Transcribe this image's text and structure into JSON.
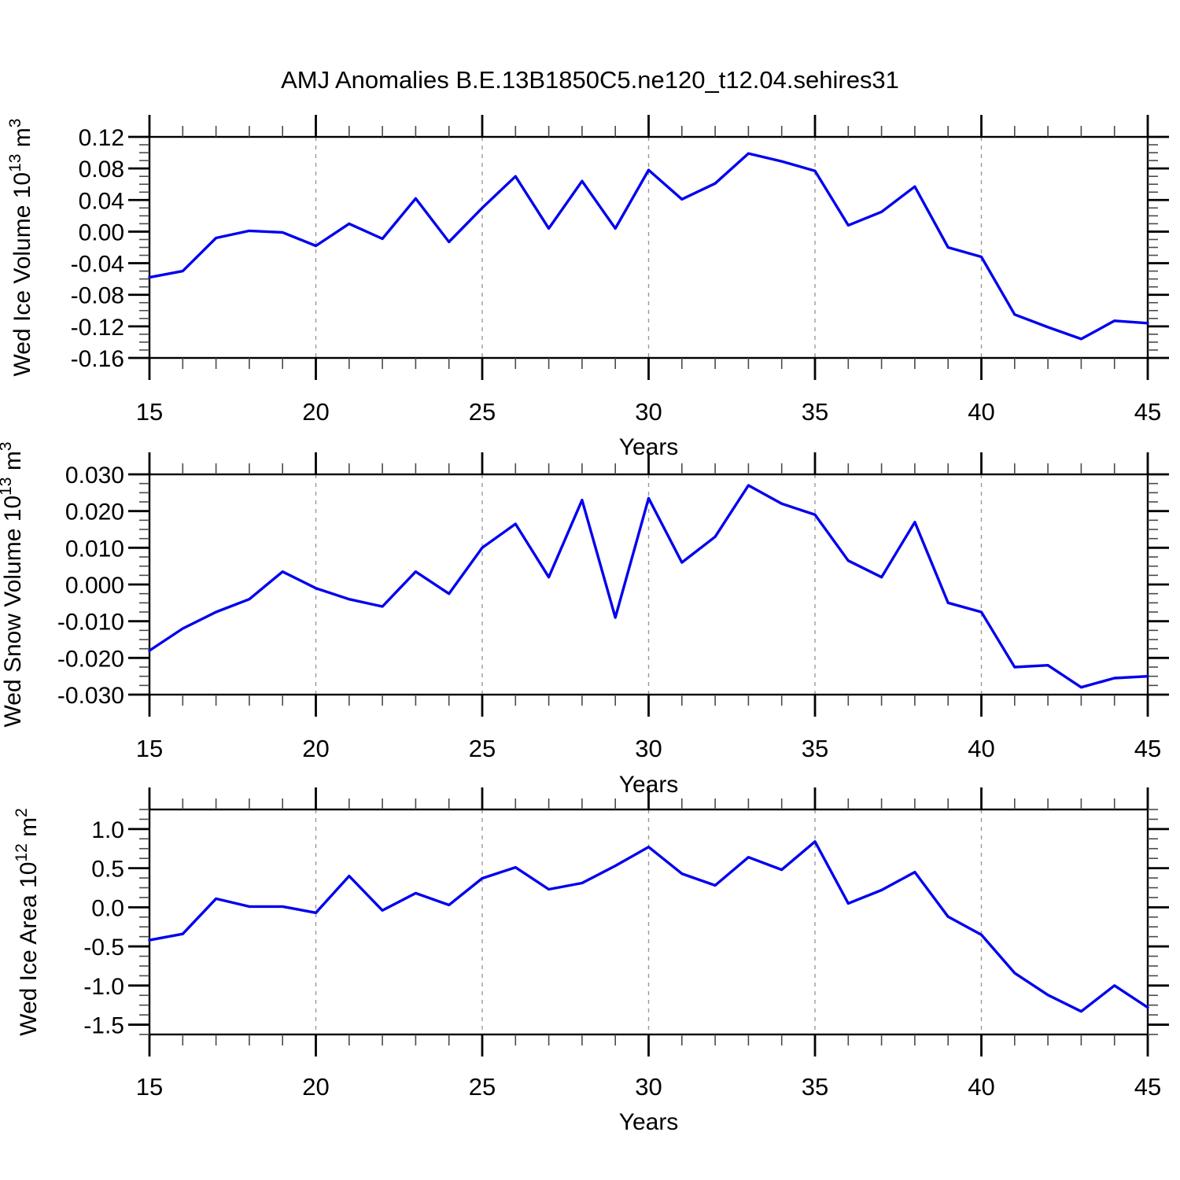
{
  "title": "AMJ Anomalies B.E.13B1850C5.ne120_t12.04.sehires31",
  "colors": {
    "line": "#0000EE",
    "frame": "#000000",
    "major_tick": "#000000",
    "minor_tick": "#4a4a4a",
    "gridline": "#999999",
    "text": "#000000",
    "background": "#ffffff"
  },
  "chart_data": [
    {
      "type": "line",
      "panel": "wed-ice-volume",
      "ylabel": "Wed Ice Volume 10^13 m^3",
      "ylabel_segments": [
        {
          "t": "Wed Ice Volume 10"
        },
        {
          "t": "13",
          "sup": true
        },
        {
          "t": " m"
        },
        {
          "t": "3",
          "sup": true
        }
      ],
      "xlabel": "Years",
      "xlim": [
        15,
        45
      ],
      "ylim": [
        -0.16,
        0.12
      ],
      "xticks": [
        15,
        20,
        25,
        30,
        35,
        40,
        45
      ],
      "xtick_labels": [
        "15",
        "20",
        "25",
        "30",
        "35",
        "40",
        "45"
      ],
      "x_minor_step": 1,
      "gridline_x": [
        20,
        25,
        30,
        35,
        40
      ],
      "ytick_values": [
        0.12,
        0.08,
        0.04,
        0.0,
        -0.04,
        -0.08,
        -0.12,
        -0.16
      ],
      "ytick_labels": [
        "0.12",
        "0.08",
        "0.04",
        "0.00",
        "-0.04",
        "-0.08",
        "-0.12",
        "-0.16"
      ],
      "y_minor_step": 0.01,
      "x": [
        15,
        16,
        17,
        18,
        19,
        20,
        21,
        22,
        23,
        24,
        25,
        26,
        27,
        28,
        29,
        30,
        31,
        32,
        33,
        34,
        35,
        36,
        37,
        38,
        39,
        40,
        41,
        42,
        43,
        44,
        45
      ],
      "values": [
        -0.058,
        -0.05,
        -0.008,
        0.001,
        -0.001,
        -0.018,
        0.01,
        -0.009,
        0.042,
        -0.013,
        0.03,
        0.07,
        0.004,
        0.064,
        0.004,
        0.078,
        0.041,
        0.061,
        0.099,
        0.089,
        0.077,
        0.008,
        0.025,
        0.057,
        -0.02,
        -0.032,
        -0.105,
        -0.121,
        -0.136,
        -0.113,
        -0.116
      ]
    },
    {
      "type": "line",
      "panel": "wed-snow-volume",
      "ylabel": "Wed Snow Volume 10^13 m^3",
      "ylabel_segments": [
        {
          "t": "Wed Snow Volume 10"
        },
        {
          "t": "13",
          "sup": true
        },
        {
          "t": " m"
        },
        {
          "t": "3",
          "sup": true
        }
      ],
      "xlabel": "Years",
      "xlim": [
        15,
        45
      ],
      "ylim": [
        -0.03,
        0.03
      ],
      "xticks": [
        15,
        20,
        25,
        30,
        35,
        40,
        45
      ],
      "xtick_labels": [
        "15",
        "20",
        "25",
        "30",
        "35",
        "40",
        "45"
      ],
      "x_minor_step": 1,
      "gridline_x": [
        20,
        25,
        30,
        35,
        40
      ],
      "ytick_values": [
        0.03,
        0.02,
        0.01,
        0.0,
        -0.01,
        -0.02,
        -0.03
      ],
      "ytick_labels": [
        "0.030",
        "0.020",
        "0.010",
        "0.000",
        "-0.010",
        "-0.020",
        "-0.030"
      ],
      "y_minor_step": 0.0025,
      "x": [
        15,
        16,
        17,
        18,
        19,
        20,
        21,
        22,
        23,
        24,
        25,
        26,
        27,
        28,
        29,
        30,
        31,
        32,
        33,
        34,
        35,
        36,
        37,
        38,
        39,
        40,
        41,
        42,
        43,
        44,
        45
      ],
      "values": [
        -0.018,
        -0.012,
        -0.0075,
        -0.004,
        0.0035,
        -0.001,
        -0.004,
        -0.006,
        0.0035,
        -0.0025,
        0.01,
        0.0165,
        0.002,
        0.023,
        -0.009,
        0.0235,
        0.006,
        0.013,
        0.027,
        0.022,
        0.019,
        0.0065,
        0.002,
        0.017,
        -0.005,
        -0.0075,
        -0.0225,
        -0.022,
        -0.028,
        -0.0255,
        -0.025
      ]
    },
    {
      "type": "line",
      "panel": "wed-ice-area",
      "ylabel": "Wed Ice Area 10^12 m^2",
      "ylabel_segments": [
        {
          "t": "Wed Ice Area 10"
        },
        {
          "t": "12",
          "sup": true
        },
        {
          "t": " m"
        },
        {
          "t": "2",
          "sup": true
        }
      ],
      "xlabel": "Years",
      "xlim": [
        15,
        45
      ],
      "ylim": [
        -1.625,
        1.25
      ],
      "xticks": [
        15,
        20,
        25,
        30,
        35,
        40,
        45
      ],
      "xtick_labels": [
        "15",
        "20",
        "25",
        "30",
        "35",
        "40",
        "45"
      ],
      "x_minor_step": 1,
      "gridline_x": [
        20,
        25,
        30,
        35,
        40
      ],
      "ytick_values": [
        1.0,
        0.5,
        0.0,
        -0.5,
        -1.0,
        -1.5
      ],
      "ytick_labels": [
        "1.0",
        "0.5",
        "0.0",
        "-0.5",
        "-1.0",
        "-1.5"
      ],
      "y_minor_step": 0.125,
      "x": [
        15,
        16,
        17,
        18,
        19,
        20,
        21,
        22,
        23,
        24,
        25,
        26,
        27,
        28,
        29,
        30,
        31,
        32,
        33,
        34,
        35,
        36,
        37,
        38,
        39,
        40,
        41,
        42,
        43,
        44,
        45
      ],
      "values": [
        -0.42,
        -0.34,
        0.11,
        0.01,
        0.01,
        -0.07,
        0.4,
        -0.04,
        0.18,
        0.03,
        0.37,
        0.51,
        0.23,
        0.31,
        0.53,
        0.77,
        0.43,
        0.28,
        0.64,
        0.48,
        0.84,
        0.05,
        0.22,
        0.45,
        -0.12,
        -0.35,
        -0.84,
        -1.12,
        -1.33,
        -1.0,
        -1.28
      ]
    }
  ]
}
